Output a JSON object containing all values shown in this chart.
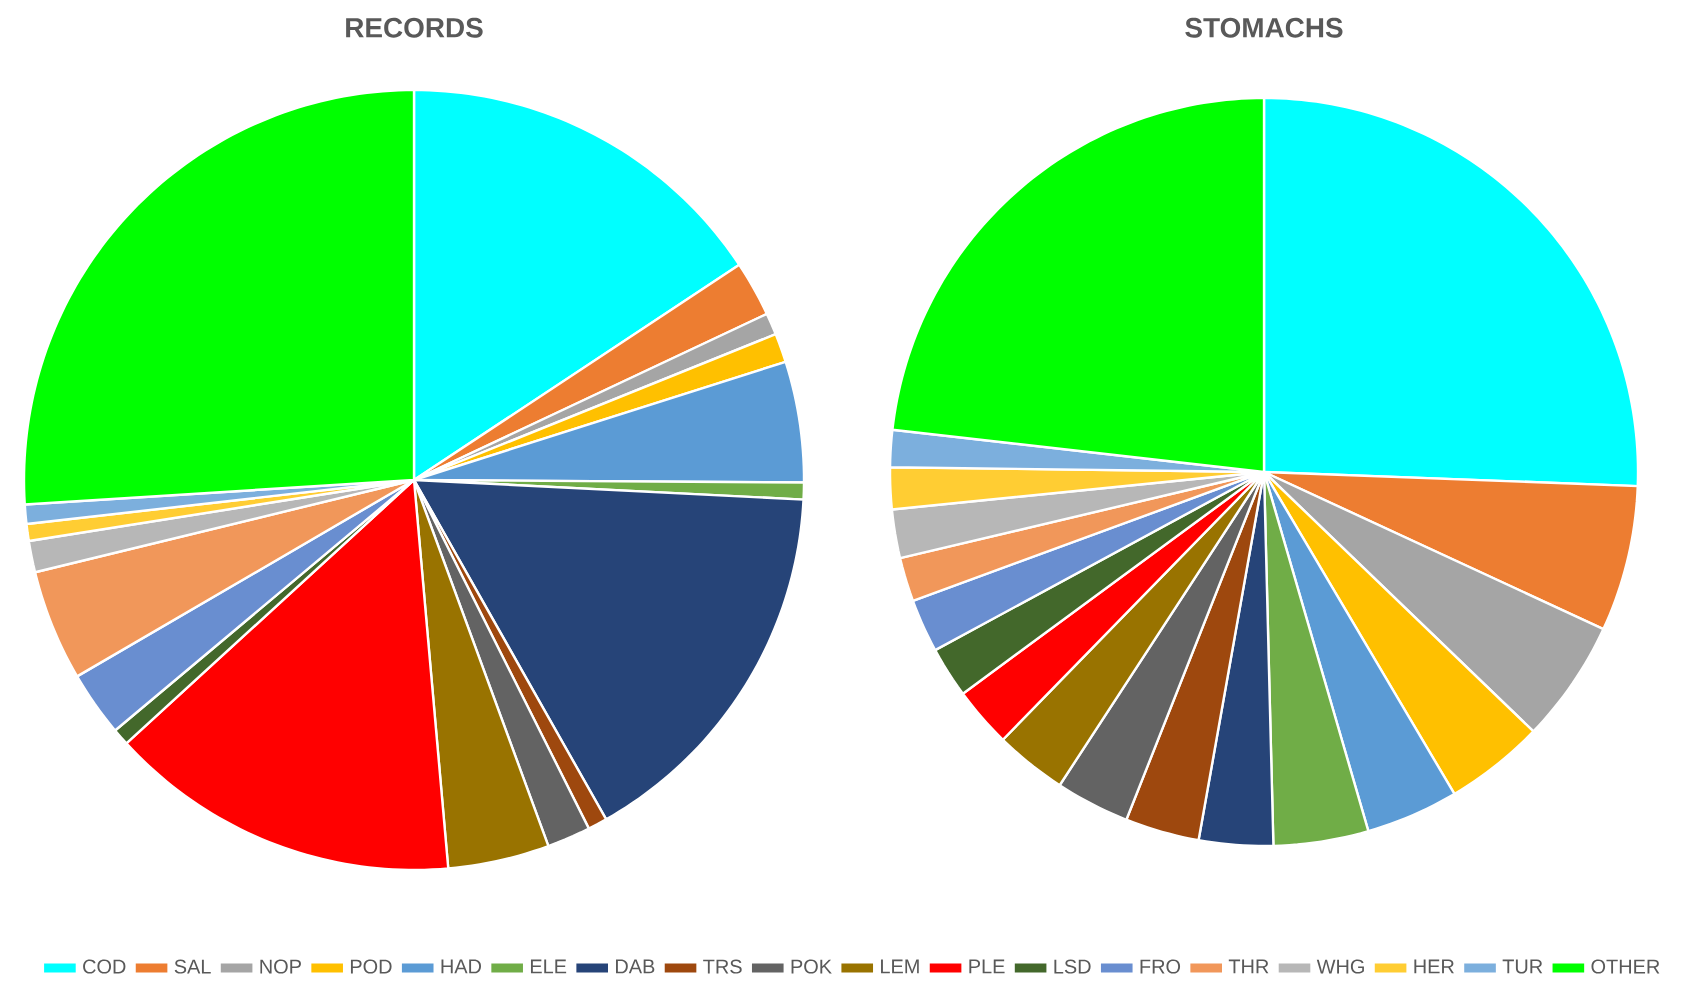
{
  "chart_data": {
    "type": "pie",
    "legend": "bottom",
    "categories": [
      "COD",
      "SAL",
      "NOP",
      "POD",
      "HAD",
      "ELE",
      "DAB",
      "TRS",
      "POK",
      "LEM",
      "PLE",
      "LSD",
      "FRO",
      "THR",
      "WHG",
      "HER",
      "TUR",
      "OTHER"
    ],
    "colors": [
      "#00ffff",
      "#ed7d31",
      "#a5a5a5",
      "#ffc000",
      "#5b9bd5",
      "#70ad47",
      "#264478",
      "#9e480e",
      "#636363",
      "#997300",
      "#ff0000",
      "#43682b",
      "#698ed0",
      "#f1975a",
      "#b7b7b7",
      "#ffcd33",
      "#7cafdd",
      "#00ff00"
    ],
    "series": [
      {
        "name": "RECORDS",
        "values": [
          15.7,
          2.3,
          0.9,
          1.2,
          5.0,
          0.7,
          16.0,
          0.8,
          1.8,
          4.2,
          14.6,
          0.7,
          2.7,
          4.6,
          1.3,
          0.7,
          0.8,
          26.0
        ]
      },
      {
        "name": "STOMACHS",
        "values": [
          25.6,
          6.3,
          5.3,
          4.3,
          4.0,
          4.1,
          3.2,
          3.2,
          3.2,
          3.1,
          2.6,
          2.2,
          2.3,
          1.9,
          2.1,
          1.8,
          1.6,
          23.2
        ]
      }
    ]
  }
}
